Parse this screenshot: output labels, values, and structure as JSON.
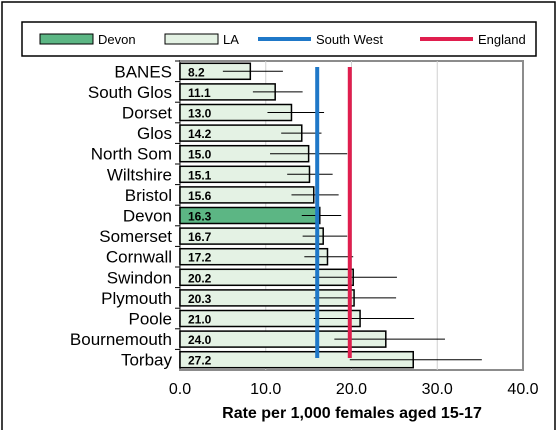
{
  "chart_data": {
    "type": "bar",
    "orientation": "horizontal",
    "categories": [
      "BANES",
      "South Glos",
      "Dorset",
      "Glos",
      "North Som",
      "Wiltshire",
      "Bristol",
      "Devon",
      "Somerset",
      "Cornwall",
      "Swindon",
      "Plymouth",
      "Poole",
      "Bournemouth",
      "Torbay"
    ],
    "values": [
      8.2,
      11.1,
      13.0,
      14.2,
      15.0,
      15.1,
      15.6,
      16.3,
      16.7,
      17.2,
      20.2,
      20.3,
      21.0,
      24.0,
      27.2
    ],
    "value_labels": [
      "8.2",
      "11.1",
      "13.0",
      "14.2",
      "15.0",
      "15.1",
      "15.6",
      "16.3",
      "16.7",
      "17.2",
      "20.2",
      "20.3",
      "21.0",
      "24.0",
      "27.2"
    ],
    "error_low": [
      5.0,
      8.5,
      10.2,
      11.8,
      10.5,
      12.5,
      13.0,
      14.2,
      14.3,
      14.5,
      15.5,
      15.6,
      15.6,
      18.0,
      19.8
    ],
    "error_high": [
      12.0,
      14.3,
      16.8,
      16.5,
      19.5,
      17.8,
      18.5,
      18.8,
      19.5,
      20.2,
      25.3,
      25.2,
      27.3,
      30.9,
      35.2
    ],
    "highlight": "Devon",
    "reference_lines": [
      {
        "name": "South West",
        "value": 16.0,
        "color": "#1f78c8"
      },
      {
        "name": "England",
        "value": 19.8,
        "color": "#e01e4e"
      }
    ],
    "legend": [
      "Devon",
      "LA",
      "South West",
      "England"
    ],
    "legend_placement": "top",
    "xlabel": "Rate per 1,000 females aged 15-17",
    "xlim": [
      0,
      40
    ],
    "xticks": [
      "0.0",
      "10.0",
      "20.0",
      "30.0",
      "40.0"
    ],
    "grid": true,
    "colors": {
      "highlight": "#5cb684",
      "bar": "#e4f2e4",
      "bar_border": "#000000"
    }
  }
}
